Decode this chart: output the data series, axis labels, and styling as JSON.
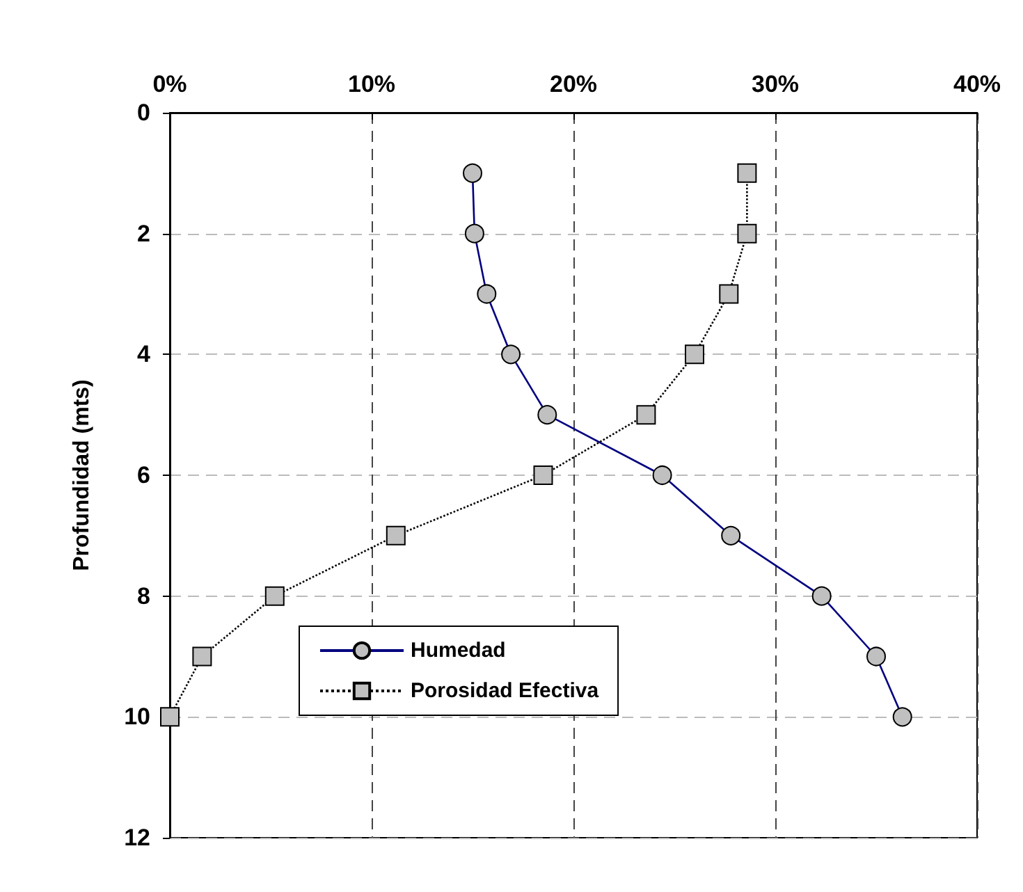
{
  "chart_data": {
    "type": "line",
    "ylabel": "Profundidad (mts)",
    "xlim": [
      0,
      40
    ],
    "xticks": [
      {
        "value": 0,
        "label": "0%"
      },
      {
        "value": 10,
        "label": "10%"
      },
      {
        "value": 20,
        "label": "20%"
      },
      {
        "value": 30,
        "label": "30%"
      },
      {
        "value": 40,
        "label": "40%"
      }
    ],
    "ylim": [
      12,
      0
    ],
    "yticks": [
      0,
      2,
      4,
      6,
      8,
      10,
      12
    ],
    "grid": true,
    "legend": "bottom left",
    "series": [
      {
        "name": "Humedad",
        "color": "#000080",
        "marker": "circle",
        "line_style": "solid",
        "x": [
          15.0,
          15.1,
          15.7,
          16.9,
          18.7,
          24.4,
          27.8,
          32.3,
          35.0,
          36.3
        ],
        "values": [
          1,
          2,
          3,
          4,
          5,
          6,
          7,
          8,
          9,
          10
        ]
      },
      {
        "name": "Porosidad Efectiva",
        "color": "#000000",
        "marker": "square",
        "line_style": "dotted",
        "x": [
          28.6,
          28.6,
          27.7,
          26.0,
          23.6,
          18.5,
          11.2,
          5.2,
          1.6,
          0
        ],
        "values": [
          1,
          2,
          3,
          4,
          5,
          6,
          7,
          8,
          9,
          10
        ]
      }
    ]
  }
}
